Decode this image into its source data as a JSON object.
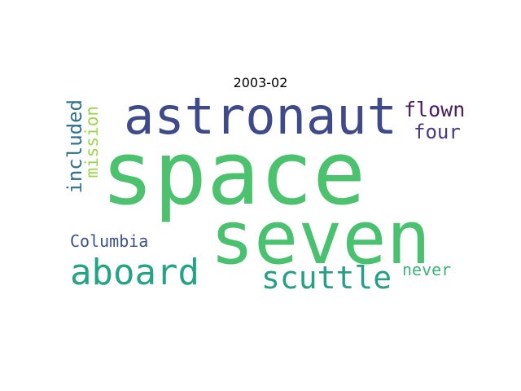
{
  "title": "2003-02",
  "words": [
    {
      "text": "space",
      "color": "#4cc26e"
    },
    {
      "text": "seven",
      "color": "#4ac16f"
    },
    {
      "text": "astronaut",
      "color": "#3e4a89"
    },
    {
      "text": "aboard",
      "color": "#25a385"
    },
    {
      "text": "scuttle",
      "color": "#26a084"
    },
    {
      "text": "flown",
      "color": "#4b1c5f"
    },
    {
      "text": "four",
      "color": "#443983"
    },
    {
      "text": "included",
      "color": "#2d728e"
    },
    {
      "text": "mission",
      "color": "#9ad74b"
    },
    {
      "text": "Columbia",
      "color": "#3b528b"
    },
    {
      "text": "never",
      "color": "#3cb27e"
    }
  ]
}
